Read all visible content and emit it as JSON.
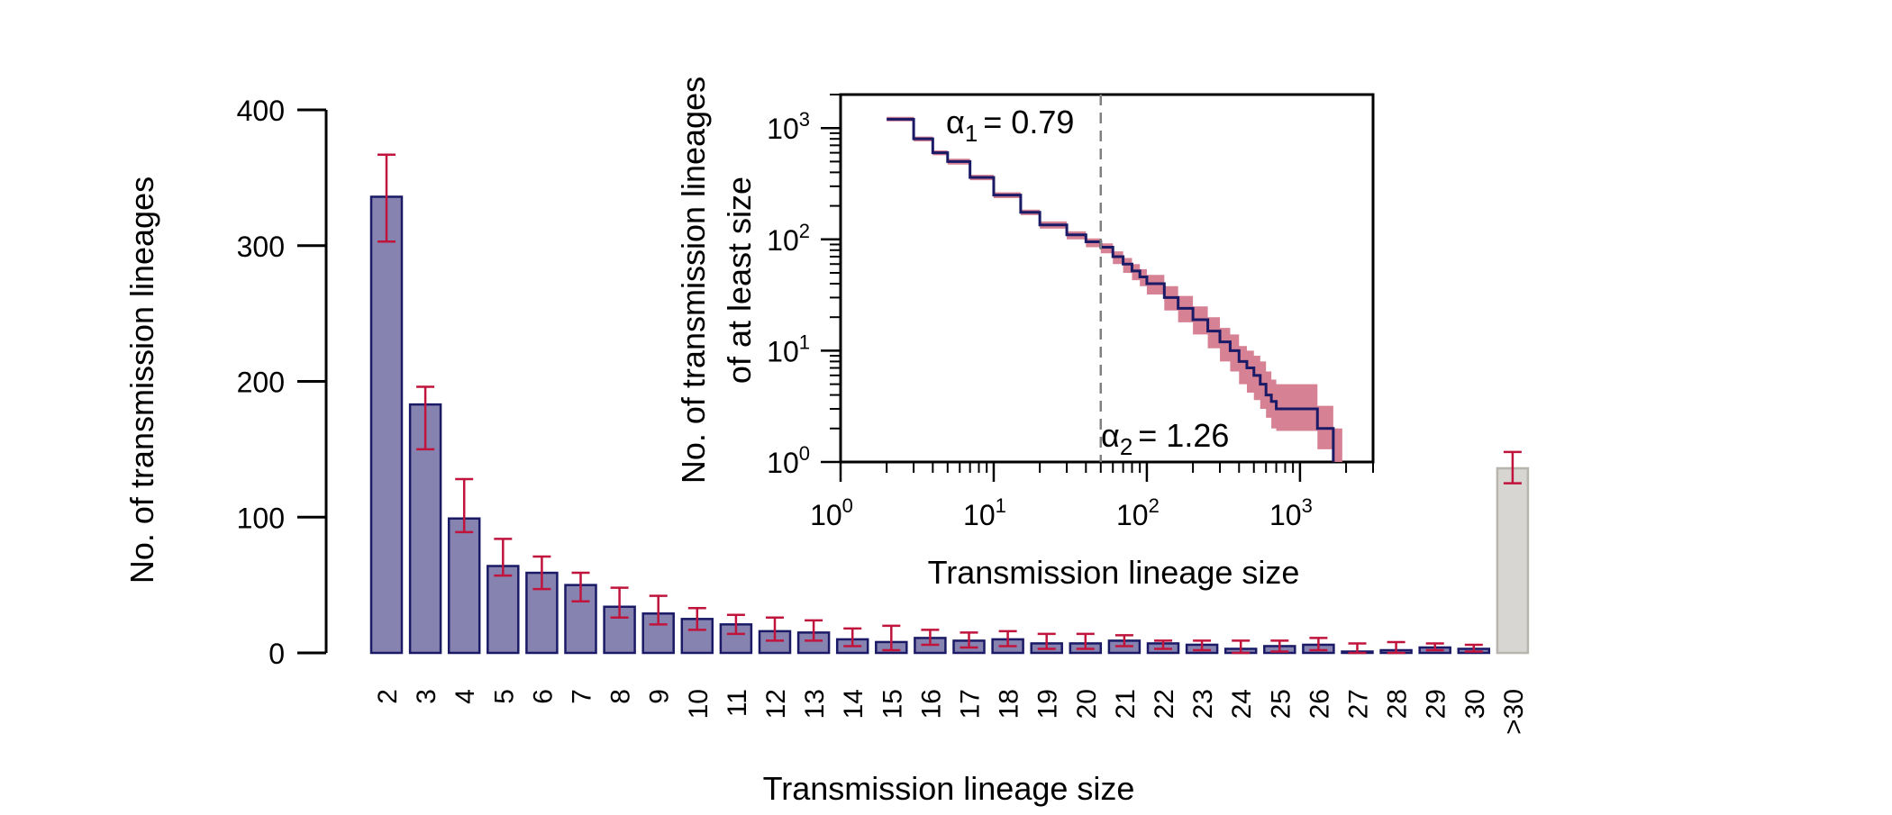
{
  "chart_data": [
    {
      "type": "bar",
      "xlabel": "Transmission lineage size",
      "ylabel": "No. of transmission lineages",
      "ylim": [
        0,
        400
      ],
      "yticks": [
        0,
        100,
        200,
        300,
        400
      ],
      "categories": [
        "2",
        "3",
        "4",
        "5",
        "6",
        "7",
        "8",
        "9",
        "10",
        "11",
        "12",
        "13",
        "14",
        "15",
        "16",
        "17",
        "18",
        "19",
        "20",
        "21",
        "22",
        "23",
        "24",
        "25",
        "26",
        "27",
        "28",
        "29",
        "30",
        ">30"
      ],
      "values": [
        336,
        183,
        99,
        64,
        59,
        50,
        34,
        29,
        25,
        21,
        16,
        15,
        10,
        8,
        11,
        9,
        10,
        7,
        7,
        9,
        7,
        6,
        3,
        5,
        6,
        1,
        2,
        4,
        3,
        136
      ],
      "error_low": [
        303,
        150,
        89,
        57,
        47,
        38,
        26,
        21,
        17,
        14,
        9,
        9,
        5,
        2,
        6,
        4,
        5,
        3,
        3,
        5,
        3,
        2,
        0,
        1,
        2,
        0,
        0,
        2,
        1,
        125
      ],
      "error_high": [
        367,
        196,
        128,
        84,
        71,
        59,
        48,
        42,
        33,
        28,
        26,
        24,
        18,
        20,
        17,
        15,
        16,
        14,
        14,
        13,
        9,
        9,
        9,
        9,
        11,
        7,
        8,
        7,
        6,
        148
      ],
      "colors": {
        "bar_fill": "#8683b0",
        "bar_stroke": "#1a1a66",
        "special_bar_fill": "#d8d6d2",
        "special_bar_stroke": "#b8b5ae",
        "error_bar": "#c0143c"
      },
      "grid": false,
      "legend": "none"
    },
    {
      "type": "line",
      "xlabel": "Transmission lineage size",
      "ylabel": [
        "No. of transmission lineages",
        "of at least size"
      ],
      "xscale": "log",
      "yscale": "log",
      "xlim": [
        1,
        3000
      ],
      "ylim": [
        1,
        2000
      ],
      "xtick_labels": [
        "10^0",
        "10^1",
        "10^2",
        "10^3"
      ],
      "ytick_labels": [
        "10^0",
        "10^1",
        "10^2",
        "10^3"
      ],
      "series": [
        {
          "x": [
            2,
            3,
            4,
            5,
            7,
            10,
            15,
            20,
            30,
            40,
            50,
            60,
            70,
            80,
            90,
            100,
            130,
            160,
            200,
            250,
            300,
            350,
            400,
            450,
            500,
            550,
            600,
            650,
            700,
            800,
            1000,
            1300,
            1500,
            1600,
            1650
          ],
          "y": [
            1200,
            800,
            600,
            500,
            360,
            250,
            175,
            135,
            110,
            95,
            85,
            70,
            60,
            52,
            46,
            40,
            30,
            24,
            19,
            15,
            12,
            10,
            8,
            7,
            6,
            5,
            4,
            3.5,
            3,
            3,
            3,
            2,
            2,
            2,
            1
          ],
          "band_low": [
            1150,
            760,
            570,
            470,
            340,
            235,
            165,
            125,
            100,
            85,
            75,
            60,
            50,
            43,
            38,
            32,
            23,
            18,
            14,
            10.5,
            8,
            6.5,
            5,
            4.2,
            3.6,
            3,
            2.5,
            2,
            1.9,
            1.9,
            1.9,
            1.3,
            1.3,
            1.3,
            1
          ],
          "band_high": [
            1260,
            840,
            630,
            530,
            380,
            265,
            185,
            145,
            118,
            102,
            92,
            78,
            68,
            60,
            54,
            48,
            38,
            31,
            25,
            20,
            16,
            14,
            11,
            10,
            9,
            8,
            6.5,
            5.5,
            5,
            5,
            5,
            3.2,
            3.2,
            3.2,
            2
          ]
        }
      ],
      "colors": {
        "line": "#1a1a66",
        "band": "#d47a8e",
        "cutoff_line": "#808080"
      },
      "annotations": {
        "alpha1_symbol": "α",
        "alpha1_sub": "1",
        "alpha1_value": "= 0.79",
        "alpha2_symbol": "α",
        "alpha2_sub": "2",
        "alpha2_value": "= 1.26"
      },
      "cutoff_x": 50,
      "grid": false,
      "legend": "none"
    }
  ]
}
